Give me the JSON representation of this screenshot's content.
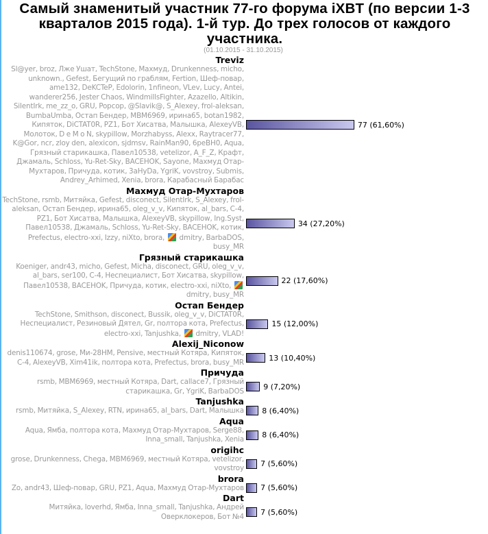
{
  "title": "Самый знаменитый участник 77-го форума iXBT (по версии 1-3 кварталов 2015 года). 1-й тур. До трех голосов от каждого участника.",
  "period": "(01.10.2015 - 31.10.2015)",
  "colors": {
    "bar_start": "#5a55a0",
    "bar_end": "#c9c8ee",
    "voters_text": "#999999",
    "left_border": "#5ab4f0"
  },
  "options": [
    {
      "name": "Treviz",
      "votes": 77,
      "percent": 61.6,
      "result": "77 (61,60%)",
      "voters": "Sl@yer, broz, Лже Ушат, TechStone, Махмуд, Drunkenness, micho, unknown., Gefest, Бегущий по граблям, Fertion, Шеф-повар, ame132, DeKCTeP, Edolorin, 1nfineon, VLev, Lucy, Antei, wanderer256, Jester Chaos, WindmillsFighter, Azazello, Altikin, SilentIrk, me_zz_o, GRU, Popcop, @Slavik@, S_Alexey, frol-aleksan, BumbaUmba, Остап Бендер, MBM6969, ирина65, botan1982, Кипяток, DiCTAT0R, PZ1, Бот Хисатва, Малышка, AlexeyVB, Молоток, D e M o N, skypillow, Morzhabyss, Alexx, Raytracer77, K@Gor, ncr, zloy den, alexicon, sjdmsv, RainMan90, 6peBH0, Aqua, Грязный старикашка, Павел10538, vetelizor, A_F_Z, Крафт, Джамаль, Schloss, Yu-Ret-Sky, BACEHOK, Sayone, Махмуд Отар-Мухтаров, Причуда, котик, 3aHyDa, YgriK, vovstroy, Submis, Andrey_Arhimed, Xenia, brora, Карабасный Барабас"
    },
    {
      "name": "Махмуд Отар-Мухтаров",
      "votes": 34,
      "percent": 27.2,
      "result": "34 (27,20%)",
      "voters": "TechStone, rsmb, Митяйка, Gefest, disconect, SilentIrk, S_Alexey, frol-aleksan, Остап Бендер, ирина65, oleg_v_v, Кипяток, al_bars, C-4, PZ1, Бот Хисатва, Малышка, AlexeyVB, skypillow, Ing.Syst, Павел10538, Джамаль, Schloss, Yu-Ret-Sky, BACEHOK, котик, Prefectus, electro-xxi, Izzy, niXto, brora,",
      "voters_after_icon": "dmitry, BarbaDOS, busy_MR"
    },
    {
      "name": "Грязный старикашка",
      "votes": 22,
      "percent": 17.6,
      "result": "22 (17,60%)",
      "voters": "Koeniger, andr43, micho, Gefest, Micha, disconect, GRU, oleg_v_v, al_bars, ser100, C-4, Неспециалист, Бот Хисатва, skypillow, Павел10538, BACEHOK, Причуда, котик, electro-xxi, niXto,",
      "voters_after_icon": "dmitry, busy_MR"
    },
    {
      "name": "Остап Бендер",
      "votes": 15,
      "percent": 12.0,
      "result": "15 (12,00%)",
      "voters": "TechStone, Smithson, disconect, Bussik, oleg_v_v, DiCTAT0R, Неспециалист, Резиновый Дятел, Gr, полтора кота, Prefectus, electro-xxi, Tanjushka,",
      "voters_after_icon": "dmitry, VLAD!"
    },
    {
      "name": "Alexij_Niconow",
      "votes": 13,
      "percent": 10.4,
      "result": "13 (10,40%)",
      "voters": "denis110674, grose, Ми-28НМ, Pensive, местный Котяра, Кипяток, C-4, AlexeyVB, Xim41ik, полтора кота, Prefectus, brora, busy_MR"
    },
    {
      "name": "Причуда",
      "votes": 9,
      "percent": 7.2,
      "result": "9 (7,20%)",
      "voters": "rsmb, MBM6969, местный Котяра, Dart, callace7, Грязный старикашка, Gr, YgriK, BarbaDOS"
    },
    {
      "name": "Tanjushka",
      "votes": 8,
      "percent": 6.4,
      "result": "8 (6,40%)",
      "voters": "rsmb, Митяйка, S_Alexey, RTN, ирина65, al_bars, Dart, Малышка"
    },
    {
      "name": "Aqua",
      "votes": 8,
      "percent": 6.4,
      "result": "8 (6,40%)",
      "voters": "Aqua, Ямба, полтора кота, Махмуд Отар-Мухтаров, Serge88, Inna_small, Tanjushka, Xenia"
    },
    {
      "name": "origihc",
      "votes": 7,
      "percent": 5.6,
      "result": "7 (5,60%)",
      "voters": "grose, Drunkenness, Chega, MBM6969, местный Котяра, vetelizor, vovstroy"
    },
    {
      "name": "brora",
      "votes": 7,
      "percent": 5.6,
      "result": "7 (5,60%)",
      "voters": "Zo, andr43, Шеф-повар, GRU, PZ1, Aqua, Махмуд Отар-Мухтаров"
    },
    {
      "name": "Dart",
      "votes": 7,
      "percent": 5.6,
      "result": "7 (5,60%)",
      "voters": "Митяйка, loverhd, Ямба, Inna_small, Tanjushka, Андрей Оверклокеров, Бот №4"
    }
  ]
}
